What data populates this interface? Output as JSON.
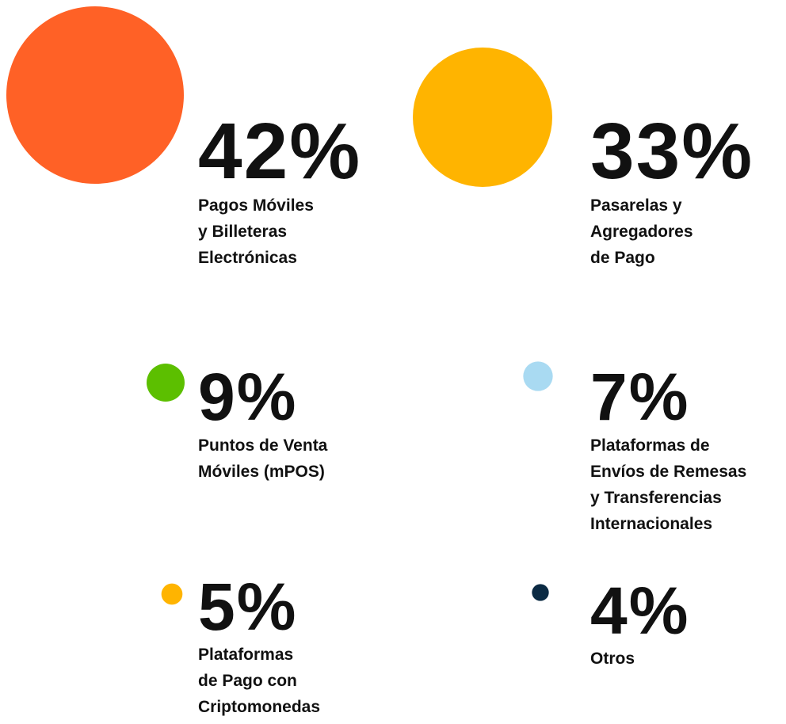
{
  "chart_data": {
    "type": "bubble",
    "categories": [
      "Pagos Móviles\ny Billeteras\nElectrónicas",
      "Pasarelas y\nAgregadores\nde Pago",
      "Puntos de Venta\nMóviles (mPOS)",
      "Plataformas de\nEnvíos de Remesas\ny Transferencias\nInternacionales",
      "Plataformas\nde Pago con\nCriptomonedas",
      "Otros"
    ],
    "values": [
      42,
      33,
      9,
      7,
      5,
      4
    ],
    "value_labels": [
      "42%",
      "33%",
      "9%",
      "7%",
      "5%",
      "4%"
    ],
    "colors": [
      "#ff6126",
      "#ffb400",
      "#5cbf00",
      "#a9daf2",
      "#ffb400",
      "#0b2a43"
    ]
  }
}
